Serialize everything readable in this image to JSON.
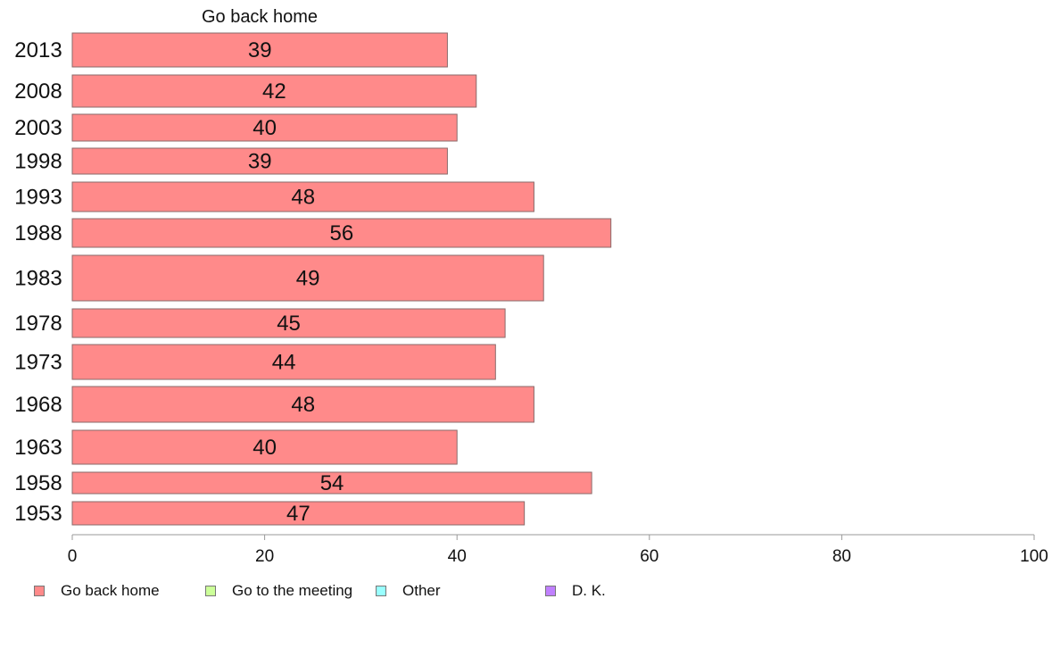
{
  "chart_data": {
    "type": "bar",
    "orientation": "horizontal",
    "panel_title": "Go back home",
    "categories": [
      "2013",
      "2008",
      "2003",
      "1998",
      "1993",
      "1988",
      "1983",
      "1978",
      "1973",
      "1968",
      "1963",
      "1958",
      "1953"
    ],
    "series": [
      {
        "name": "Go back home",
        "color": "#ff8a8a",
        "values": [
          39,
          42,
          40,
          39,
          48,
          56,
          49,
          45,
          44,
          48,
          40,
          54,
          47
        ]
      }
    ],
    "xlim": [
      0,
      100
    ],
    "x_ticks": [
      "0",
      "20",
      "40",
      "60",
      "80",
      "100"
    ],
    "grid": false,
    "legend_position": "bottom",
    "legend": [
      {
        "label": "Go back home",
        "color": "#ff8a8a"
      },
      {
        "label": "Go to the meeting",
        "color": "#ccff99"
      },
      {
        "label": "Other",
        "color": "#99ffff"
      },
      {
        "label": "D. K.",
        "color": "#c080ff"
      }
    ]
  }
}
